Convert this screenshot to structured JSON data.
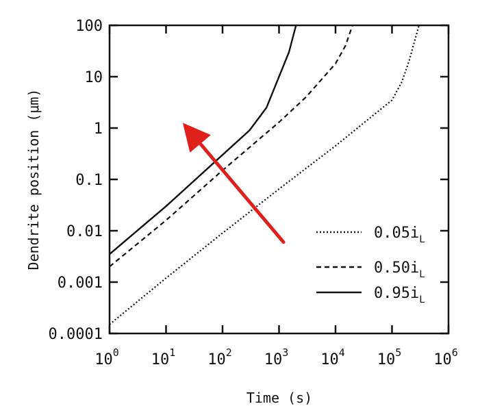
{
  "chart_data": {
    "type": "line",
    "title": "",
    "xlabel": "Time (s)",
    "ylabel": "Dendrite position (μm)",
    "x_scale": "log",
    "y_scale": "log",
    "xlim": [
      1,
      1000000
    ],
    "ylim": [
      0.0001,
      100
    ],
    "grid": false,
    "legend_position": "bottom-right",
    "x_ticks": [
      {
        "base": "10",
        "exp": "0",
        "value": 1
      },
      {
        "base": "10",
        "exp": "1",
        "value": 10
      },
      {
        "base": "10",
        "exp": "2",
        "value": 100
      },
      {
        "base": "10",
        "exp": "3",
        "value": 1000
      },
      {
        "base": "10",
        "exp": "4",
        "value": 10000
      },
      {
        "base": "10",
        "exp": "5",
        "value": 100000
      },
      {
        "base": "10",
        "exp": "6",
        "value": 1000000
      }
    ],
    "y_ticks": [
      {
        "label": "100",
        "value": 100
      },
      {
        "label": "10",
        "value": 10
      },
      {
        "label": "1",
        "value": 1
      },
      {
        "label": "0.1",
        "value": 0.1
      },
      {
        "label": "0.01",
        "value": 0.01
      },
      {
        "label": "0.001",
        "value": 0.001
      },
      {
        "label": "0.0001",
        "value": 0.0001
      }
    ],
    "series": [
      {
        "name": "0.05i_L",
        "label_main": "0.05i",
        "label_sub": "L",
        "style": "dotted",
        "x": [
          1,
          10,
          100,
          1000,
          10000,
          100000,
          150000,
          200000,
          300000
        ],
        "y": [
          0.00015,
          0.0012,
          0.009,
          0.065,
          0.45,
          3.5,
          8,
          20,
          100
        ]
      },
      {
        "name": "0.50i_L",
        "label_main": "0.50i",
        "label_sub": "L",
        "style": "dashed",
        "x": [
          1,
          10,
          100,
          1000,
          3000,
          10000,
          15000,
          20000
        ],
        "y": [
          0.002,
          0.016,
          0.15,
          1.3,
          4,
          18,
          40,
          100
        ]
      },
      {
        "name": "0.95i_L",
        "label_main": "0.95i",
        "label_sub": "L",
        "style": "solid",
        "x": [
          1,
          10,
          100,
          300,
          600,
          1000,
          1500,
          2000
        ],
        "y": [
          0.0035,
          0.03,
          0.3,
          0.9,
          2.5,
          10,
          30,
          100
        ]
      }
    ],
    "annotation": {
      "type": "arrow",
      "color": "#e0201b",
      "from": {
        "x": 1200,
        "y": 0.006
      },
      "to": {
        "x": 20,
        "y": 1.2
      }
    }
  }
}
